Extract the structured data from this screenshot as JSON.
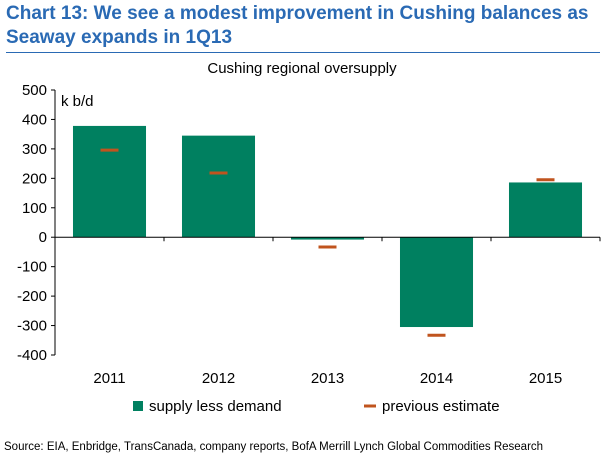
{
  "header": {
    "title_line1": "Chart 13: We see a modest improvement in Cushing balances as",
    "title_line2": "Seaway expands in 1Q13"
  },
  "footer": {
    "source": "Source: EIA, Enbridge, TransCanada, company reports, BofA Merrill Lynch Global Commodities Research"
  },
  "chart_data": {
    "type": "bar",
    "title": "Cushing regional oversupply",
    "ylabel": "k b/d",
    "categories": [
      "2011",
      "2012",
      "2013",
      "2014",
      "2015"
    ],
    "series": [
      {
        "name": "supply less demand",
        "kind": "bar",
        "color": "#008060",
        "values": [
          378,
          345,
          -8,
          -305,
          186
        ]
      },
      {
        "name": "previous estimate",
        "kind": "marker",
        "color": "#c0541e",
        "values": [
          296,
          218,
          -33,
          -333,
          195
        ]
      }
    ],
    "ylim": [
      -400,
      500
    ],
    "yticks": [
      500,
      400,
      300,
      200,
      100,
      0,
      -100,
      -200,
      -300,
      -400
    ],
    "grid": false,
    "legend_position": "bottom"
  }
}
